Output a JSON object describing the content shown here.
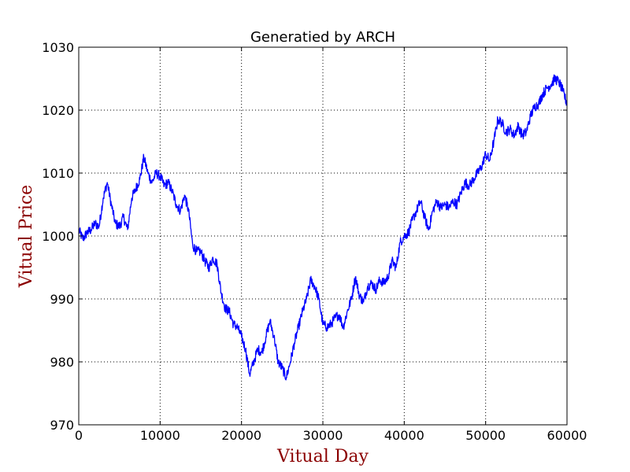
{
  "chart_data": {
    "type": "line",
    "title": "Generatied by ARCH",
    "xlabel": "Vitual Day",
    "ylabel": "Vitual Price",
    "xlim": [
      0,
      60000
    ],
    "ylim": [
      970,
      1030
    ],
    "x_ticks": [
      0,
      10000,
      20000,
      30000,
      40000,
      50000,
      60000
    ],
    "y_ticks": [
      970,
      980,
      990,
      1000,
      1010,
      1020,
      1030
    ],
    "x_tick_labels": [
      "0",
      "10000",
      "20000",
      "30000",
      "40000",
      "50000",
      "60000"
    ],
    "y_tick_labels": [
      "970",
      "980",
      "990",
      "1000",
      "1010",
      "1020",
      "1030"
    ],
    "grid": true,
    "label_color": "#8b0000",
    "series": [
      {
        "color": "#0000ff",
        "x": [
          0,
          500,
          1000,
          1500,
          2000,
          2500,
          3000,
          3500,
          4000,
          4500,
          5000,
          5500,
          6000,
          6500,
          7000,
          7500,
          8000,
          8500,
          9000,
          9500,
          10000,
          10500,
          11000,
          11500,
          12000,
          12500,
          13000,
          13500,
          14000,
          14500,
          15000,
          15500,
          16000,
          16500,
          17000,
          17500,
          18000,
          18500,
          19000,
          19500,
          20000,
          20500,
          21000,
          21500,
          22000,
          22500,
          23000,
          23500,
          24000,
          24500,
          25000,
          25500,
          26000,
          26500,
          27000,
          27500,
          28000,
          28500,
          29000,
          29500,
          30000,
          30500,
          31000,
          31500,
          32000,
          32500,
          33000,
          33500,
          34000,
          34500,
          35000,
          35500,
          36000,
          36500,
          37000,
          37500,
          38000,
          38500,
          39000,
          39500,
          40000,
          40500,
          41000,
          41500,
          42000,
          42500,
          43000,
          43500,
          44000,
          44500,
          45000,
          45500,
          46000,
          46500,
          47000,
          47500,
          48000,
          48500,
          49000,
          49500,
          50000,
          50500,
          51000,
          51500,
          52000,
          52500,
          53000,
          53500,
          54000,
          54500,
          55000,
          55500,
          56000,
          56500,
          57000,
          57500,
          58000,
          58500,
          59000,
          59500,
          60000
        ],
        "y": [
          1001,
          999.5,
          1000.5,
          1001,
          1002,
          1001.5,
          1006,
          1008.5,
          1005,
          1002,
          1001.5,
          1003,
          1001,
          1006,
          1007.5,
          1009,
          1012.5,
          1010,
          1008.5,
          1010,
          1009.5,
          1008,
          1008.5,
          1007,
          1005,
          1004,
          1006.5,
          1004,
          998.5,
          997.5,
          997.5,
          996,
          995,
          996.5,
          995.5,
          991,
          988.5,
          988,
          986,
          985.5,
          984,
          982,
          978,
          980,
          982,
          981.5,
          984,
          986.5,
          984,
          980,
          979,
          977.5,
          980,
          983,
          985.5,
          988,
          990,
          993,
          992,
          990,
          986,
          985.5,
          986,
          987,
          987.5,
          985.5,
          988,
          990,
          993.5,
          990.5,
          989.5,
          992,
          992.5,
          991.5,
          993,
          992.5,
          993.5,
          996,
          995,
          999,
          1000,
          1000.5,
          1002.5,
          1004,
          1005.5,
          1003,
          1001,
          1004,
          1005.5,
          1004.5,
          1005,
          1004.5,
          1005.5,
          1005,
          1007,
          1008.5,
          1008,
          1009,
          1010,
          1011,
          1013,
          1012,
          1015,
          1018.5,
          1018,
          1016.5,
          1017,
          1016,
          1017.5,
          1016,
          1016.5,
          1019,
          1020.5,
          1021,
          1022.5,
          1023.5,
          1024,
          1025,
          1024.5,
          1023,
          1021
        ]
      }
    ]
  }
}
